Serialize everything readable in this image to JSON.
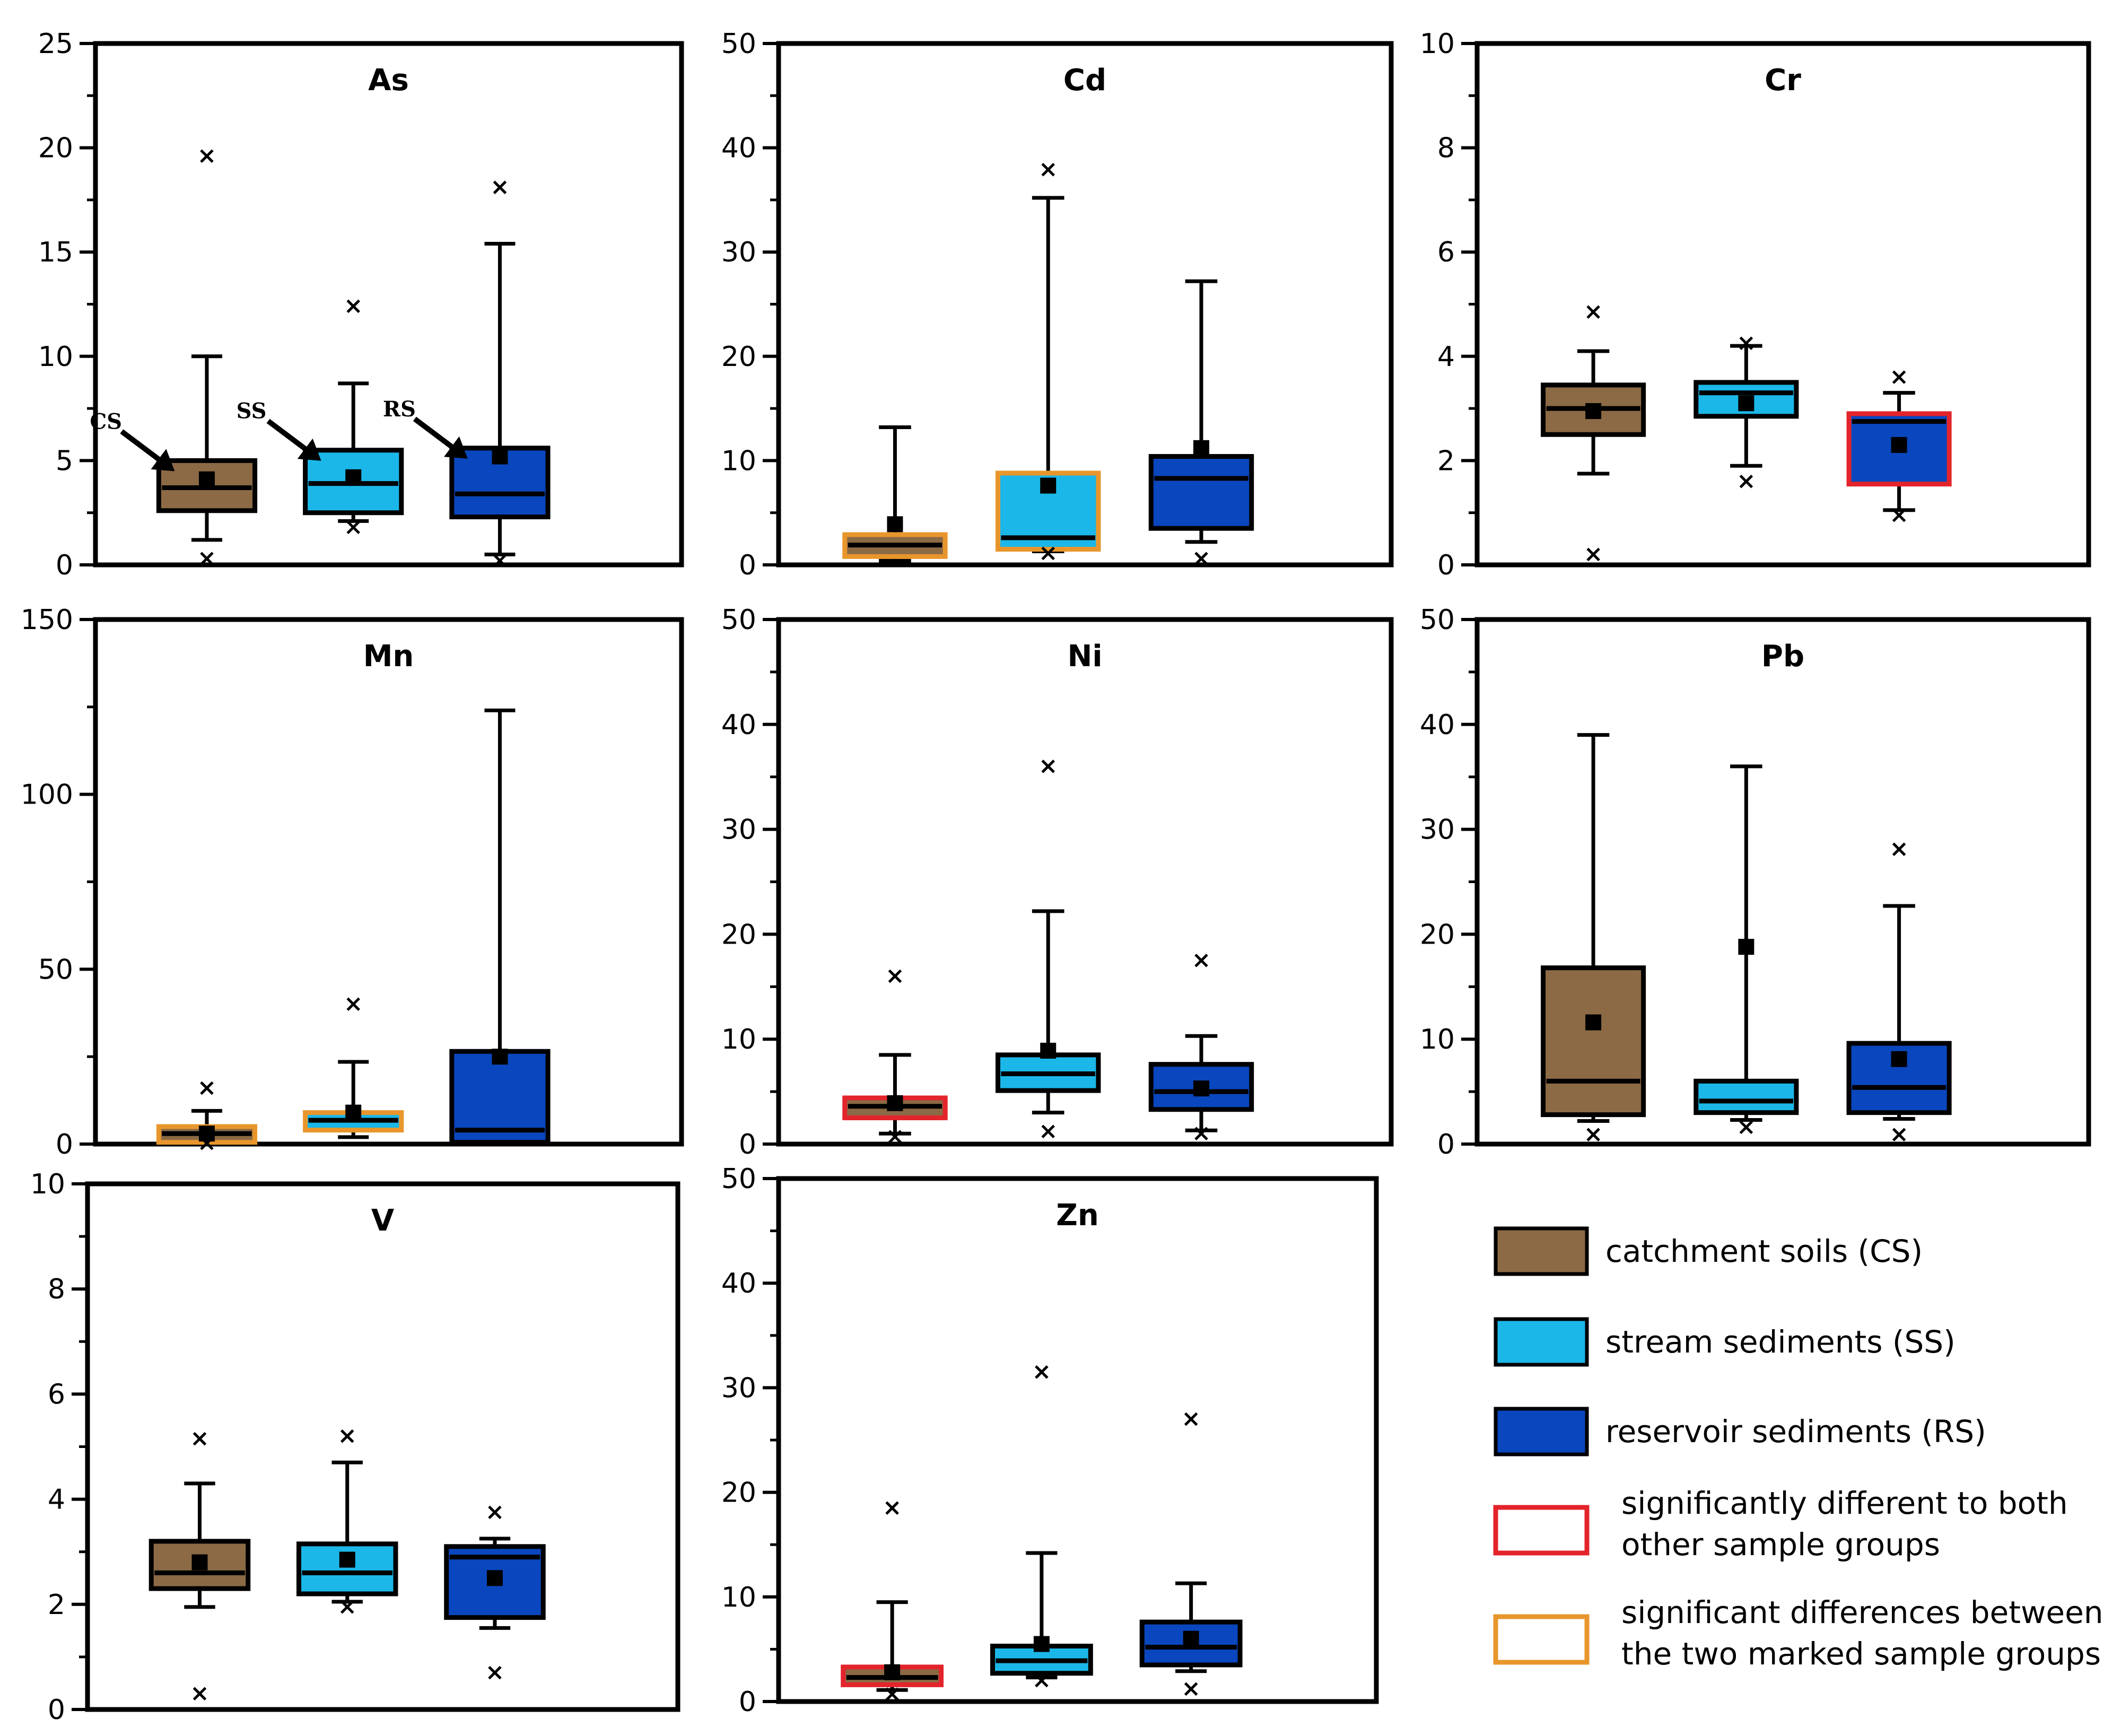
{
  "colors": {
    "CS": "#8B6A45",
    "SS": "#1BB7E8",
    "RS": "#0A47BE",
    "sig_both": "#E3242B",
    "sig_pair": "#E8962C"
  },
  "chart_data": [
    {
      "type": "box",
      "title": "As",
      "ylim": [
        0,
        25
      ],
      "yticks": [
        0,
        5,
        10,
        15,
        20,
        25
      ],
      "groups": [
        {
          "group": "CS",
          "q1": 2.6,
          "median": 3.7,
          "q3": 5.0,
          "whisker_low": 1.2,
          "whisker_high": 10.0,
          "mean": 4.1,
          "outliers": [
            19.6,
            0.3
          ],
          "highlight": null
        },
        {
          "group": "SS",
          "q1": 2.5,
          "median": 3.9,
          "q3": 5.5,
          "whisker_low": 2.1,
          "whisker_high": 8.7,
          "mean": 4.2,
          "outliers": [
            12.4,
            1.8
          ],
          "highlight": null
        },
        {
          "group": "RS",
          "q1": 2.3,
          "median": 3.4,
          "q3": 5.6,
          "whisker_low": 0.5,
          "whisker_high": 15.4,
          "mean": 5.2,
          "outliers": [
            18.1,
            0.2
          ],
          "highlight": null
        }
      ],
      "annotations": [
        "CS",
        "SS",
        "RS"
      ]
    },
    {
      "type": "box",
      "title": "Cd",
      "ylim": [
        0,
        50
      ],
      "yticks": [
        0,
        10,
        20,
        30,
        40,
        50
      ],
      "groups": [
        {
          "group": "CS",
          "q1": 0.8,
          "median": 1.9,
          "q3": 2.9,
          "whisker_low": 0.4,
          "whisker_high": 13.2,
          "mean": 3.9,
          "outliers": [],
          "highlight": "pair"
        },
        {
          "group": "SS",
          "q1": 1.5,
          "median": 2.6,
          "q3": 8.8,
          "whisker_low": 1.3,
          "whisker_high": 35.2,
          "mean": 7.6,
          "outliers": [
            37.9,
            1.1
          ],
          "highlight": "pair"
        },
        {
          "group": "RS",
          "q1": 3.5,
          "median": 8.3,
          "q3": 10.4,
          "whisker_low": 2.2,
          "whisker_high": 27.2,
          "mean": 11.2,
          "outliers": [
            0.6
          ],
          "highlight": null
        }
      ]
    },
    {
      "type": "box",
      "title": "Cr",
      "ylim": [
        0,
        10
      ],
      "yticks": [
        0,
        2,
        4,
        6,
        8,
        10
      ],
      "groups": [
        {
          "group": "CS",
          "q1": 2.5,
          "median": 3.0,
          "q3": 3.45,
          "whisker_low": 1.75,
          "whisker_high": 4.1,
          "mean": 2.95,
          "outliers": [
            4.85,
            0.2
          ],
          "highlight": null
        },
        {
          "group": "SS",
          "q1": 2.85,
          "median": 3.3,
          "q3": 3.5,
          "whisker_low": 1.9,
          "whisker_high": 4.2,
          "mean": 3.1,
          "outliers": [
            4.25,
            1.6
          ],
          "highlight": null
        },
        {
          "group": "RS",
          "q1": 1.55,
          "median": 2.75,
          "q3": 2.9,
          "whisker_low": 1.05,
          "whisker_high": 3.3,
          "mean": 2.3,
          "outliers": [
            3.6,
            0.95
          ],
          "highlight": "both"
        }
      ]
    },
    {
      "type": "box",
      "title": "Mn",
      "ylim": [
        0,
        150
      ],
      "yticks": [
        0,
        50,
        100,
        150
      ],
      "groups": [
        {
          "group": "CS",
          "q1": 0.5,
          "median": 3.0,
          "q3": 5.0,
          "whisker_low": 0.3,
          "whisker_high": 9.5,
          "mean": 3.0,
          "outliers": [
            16.0,
            0.2
          ],
          "highlight": "pair"
        },
        {
          "group": "SS",
          "q1": 4.0,
          "median": 6.8,
          "q3": 9.0,
          "whisker_low": 2.0,
          "whisker_high": 23.5,
          "mean": 9.0,
          "outliers": [
            40.0
          ],
          "highlight": "pair"
        },
        {
          "group": "RS",
          "q1": 0.5,
          "median": 4.0,
          "q3": 26.5,
          "whisker_low": 0.2,
          "whisker_high": 124.0,
          "mean": 25.0,
          "outliers": [],
          "highlight": null
        }
      ]
    },
    {
      "type": "box",
      "title": "Ni",
      "ylim": [
        0,
        50
      ],
      "yticks": [
        0,
        10,
        20,
        30,
        40,
        50
      ],
      "groups": [
        {
          "group": "CS",
          "q1": 2.5,
          "median": 3.6,
          "q3": 4.4,
          "whisker_low": 1.0,
          "whisker_high": 8.5,
          "mean": 3.9,
          "outliers": [
            16.0,
            0.7
          ],
          "highlight": "both"
        },
        {
          "group": "SS",
          "q1": 5.1,
          "median": 6.7,
          "q3": 8.5,
          "whisker_low": 3.0,
          "whisker_high": 22.2,
          "mean": 8.9,
          "outliers": [
            36.0,
            1.2
          ],
          "highlight": null
        },
        {
          "group": "RS",
          "q1": 3.3,
          "median": 5.0,
          "q3": 7.6,
          "whisker_low": 1.3,
          "whisker_high": 10.3,
          "mean": 5.3,
          "outliers": [
            17.5,
            1.0
          ],
          "highlight": null
        }
      ]
    },
    {
      "type": "box",
      "title": "Pb",
      "ylim": [
        0,
        50
      ],
      "yticks": [
        0,
        10,
        20,
        30,
        40,
        50
      ],
      "groups": [
        {
          "group": "CS",
          "q1": 2.8,
          "median": 6.0,
          "q3": 16.8,
          "whisker_low": 2.2,
          "whisker_high": 39.0,
          "mean": 11.6,
          "outliers": [
            0.9
          ],
          "highlight": null
        },
        {
          "group": "SS",
          "q1": 3.0,
          "median": 4.1,
          "q3": 6.0,
          "whisker_low": 2.3,
          "whisker_high": 36.0,
          "mean": 18.8,
          "outliers": [
            1.6
          ],
          "highlight": null
        },
        {
          "group": "RS",
          "q1": 3.0,
          "median": 5.4,
          "q3": 9.6,
          "whisker_low": 2.4,
          "whisker_high": 22.7,
          "mean": 8.1,
          "outliers": [
            28.1,
            0.9
          ],
          "highlight": null
        }
      ]
    },
    {
      "type": "box",
      "title": "V",
      "ylim": [
        0,
        10
      ],
      "yticks": [
        0,
        2,
        4,
        6,
        8,
        10
      ],
      "groups": [
        {
          "group": "CS",
          "q1": 2.3,
          "median": 2.6,
          "q3": 3.2,
          "whisker_low": 1.95,
          "whisker_high": 4.3,
          "mean": 2.8,
          "outliers": [
            5.15,
            0.3
          ],
          "highlight": null
        },
        {
          "group": "SS",
          "q1": 2.2,
          "median": 2.6,
          "q3": 3.15,
          "whisker_low": 2.05,
          "whisker_high": 4.7,
          "mean": 2.85,
          "outliers": [
            5.2,
            1.95
          ],
          "highlight": null
        },
        {
          "group": "RS",
          "q1": 1.75,
          "median": 2.9,
          "q3": 3.1,
          "whisker_low": 1.55,
          "whisker_high": 3.25,
          "mean": 2.5,
          "outliers": [
            3.75,
            0.7
          ],
          "highlight": null
        }
      ]
    },
    {
      "type": "box",
      "title": "Zn",
      "ylim": [
        0,
        50
      ],
      "yticks": [
        0,
        10,
        20,
        30,
        40,
        50
      ],
      "groups": [
        {
          "group": "CS",
          "q1": 1.6,
          "median": 2.3,
          "q3": 3.3,
          "whisker_low": 1.1,
          "whisker_high": 9.5,
          "mean": 2.8,
          "outliers": [
            18.5,
            0.7
          ],
          "highlight": "both"
        },
        {
          "group": "SS",
          "q1": 2.7,
          "median": 3.9,
          "q3": 5.3,
          "whisker_low": 2.3,
          "whisker_high": 14.2,
          "mean": 5.5,
          "outliers": [
            31.5,
            2.0
          ],
          "highlight": null
        },
        {
          "group": "RS",
          "q1": 3.5,
          "median": 5.2,
          "q3": 7.6,
          "whisker_low": 2.9,
          "whisker_high": 11.3,
          "mean": 6.0,
          "outliers": [
            27.0,
            1.2
          ],
          "highlight": null
        }
      ]
    }
  ],
  "legend": {
    "items": [
      {
        "key": "CS",
        "label": "catchment soils (CS)",
        "style": "fill"
      },
      {
        "key": "SS",
        "label": "stream sediments (SS)",
        "style": "fill"
      },
      {
        "key": "RS",
        "label": "reservoir sediments (RS)",
        "style": "fill"
      },
      {
        "key": "sig_both",
        "lines": [
          "significantly different to both",
          "other sample groups"
        ],
        "style": "outline"
      },
      {
        "key": "sig_pair",
        "lines": [
          "significant differences between",
          "the two marked sample groups"
        ],
        "style": "outline"
      }
    ]
  }
}
